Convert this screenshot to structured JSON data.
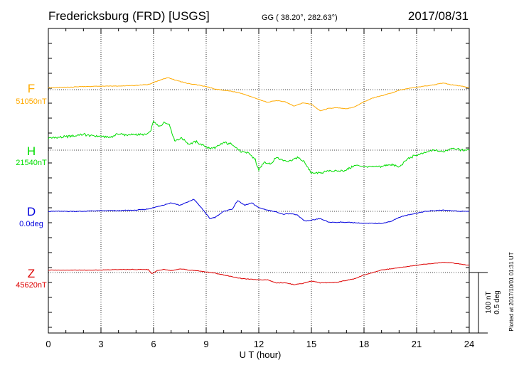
{
  "header": {
    "station": "Fredericksburg (FRD)  [USGS]",
    "coords": "GG ( 38.20°, 282.63°)",
    "date": "2017/08/31"
  },
  "chart_data": {
    "type": "line",
    "xlabel": "U T (hour)",
    "xlim": [
      0,
      24
    ],
    "xticks": [
      "0",
      "3",
      "6",
      "9",
      "12",
      "15",
      "18",
      "21",
      "24"
    ],
    "grid": true,
    "scale_bar": {
      "label1": "100 nT",
      "label2": "0.5 deg"
    },
    "footer_note": "Plotted at 2017/10/01 01:31  UT",
    "series": [
      {
        "name": "F",
        "baseline_label": "51050nT",
        "color": "#ffaa00",
        "unit": "nT relative to baseline",
        "x": [
          0,
          1,
          2,
          3,
          4,
          5,
          5.8,
          6.2,
          6.8,
          7.2,
          7.6,
          8,
          8.5,
          9,
          9.5,
          10,
          10.5,
          11,
          11.5,
          12,
          12.5,
          13,
          13.5,
          14,
          14.5,
          15,
          15.5,
          16,
          16.5,
          17,
          17.5,
          18,
          18.5,
          19,
          19.5,
          20,
          20.5,
          21,
          21.5,
          22,
          22.5,
          23,
          23.5,
          24
        ],
        "y": [
          3,
          4,
          5,
          6,
          6,
          7,
          9,
          14,
          20,
          16,
          13,
          10,
          8,
          5,
          1,
          -1,
          -3,
          -6,
          -11,
          -16,
          -21,
          -18,
          -20,
          -27,
          -22,
          -24,
          -35,
          -31,
          -30,
          -32,
          -28,
          -20,
          -14,
          -10,
          -6,
          -1,
          2,
          4,
          6,
          8,
          11,
          8,
          6,
          3
        ]
      },
      {
        "name": "H",
        "baseline_label": "21540nT",
        "color": "#00dd00",
        "unit": "nT relative to baseline",
        "x": [
          0,
          0.5,
          1,
          1.5,
          2,
          2.5,
          3,
          3.5,
          4,
          4.5,
          5,
          5.5,
          5.8,
          6,
          6.3,
          6.6,
          6.9,
          7.2,
          7.6,
          8,
          8.4,
          8.8,
          9.2,
          9.6,
          10,
          10.5,
          11,
          11.4,
          11.8,
          12,
          12.3,
          12.7,
          13,
          13.4,
          13.8,
          14.2,
          14.6,
          15,
          15.5,
          16,
          16.5,
          17,
          17.5,
          18,
          18.5,
          19,
          19.5,
          20,
          20.5,
          21,
          21.5,
          22,
          22.5,
          23,
          23.5,
          24
        ],
        "y": [
          20,
          21,
          22,
          24,
          26,
          24,
          23,
          21,
          27,
          25,
          26,
          25,
          30,
          48,
          38,
          46,
          43,
          16,
          20,
          10,
          14,
          8,
          3,
          5,
          12,
          10,
          -4,
          -4,
          -16,
          -34,
          -20,
          -22,
          -12,
          -17,
          -18,
          -12,
          -20,
          -38,
          -38,
          -34,
          -35,
          -33,
          -25,
          -27,
          -28,
          -27,
          -23,
          -28,
          -14,
          -8,
          -4,
          0,
          -3,
          4,
          0,
          0
        ]
      },
      {
        "name": "D",
        "baseline_label": "0.0deg",
        "color": "#0000dd",
        "unit": "nT relative to baseline",
        "x": [
          0,
          1,
          2,
          3,
          4,
          5,
          5.5,
          6,
          6.5,
          7,
          7.5,
          8,
          8.3,
          8.6,
          9,
          9.2,
          9.5,
          10,
          10.5,
          10.8,
          11.2,
          11.6,
          12,
          12.5,
          13,
          13.4,
          13.8,
          14.2,
          14.6,
          15,
          15.5,
          16,
          16.5,
          17,
          17.5,
          18,
          18.5,
          19,
          19.5,
          20,
          20.5,
          21,
          21.5,
          22,
          22.5,
          23,
          23.5,
          24
        ],
        "y": [
          0,
          0,
          0,
          1,
          1,
          2,
          3,
          6,
          10,
          14,
          10,
          16,
          20,
          10,
          -4,
          -12,
          -10,
          0,
          4,
          18,
          10,
          14,
          6,
          2,
          -1,
          -5,
          -4,
          -6,
          -16,
          -15,
          -12,
          -18,
          -18,
          -18,
          -19,
          -20,
          -20,
          -20,
          -17,
          -10,
          -6,
          -3,
          0,
          1,
          2,
          1,
          0,
          0
        ]
      },
      {
        "name": "Z",
        "baseline_label": "45620nT",
        "color": "#dd0000",
        "unit": "nT relative to baseline",
        "x": [
          0,
          1,
          2,
          3,
          4,
          5,
          5.7,
          5.9,
          6.2,
          6.6,
          7,
          7.6,
          8,
          8.5,
          9,
          9.5,
          10,
          10.5,
          11,
          11.5,
          12,
          12.5,
          13,
          13.5,
          14,
          14.5,
          15,
          15.5,
          16,
          16.5,
          17,
          17.5,
          18,
          18.5,
          19,
          19.5,
          20,
          20.5,
          21,
          21.5,
          22,
          22.5,
          23,
          23.5,
          24
        ],
        "y": [
          4,
          4,
          4,
          4,
          5,
          5,
          5,
          -2,
          3,
          5,
          3,
          6,
          4,
          3,
          1,
          -1,
          -4,
          -7,
          -10,
          -11,
          -12,
          -12,
          -17,
          -17,
          -20,
          -18,
          -14,
          -17,
          -17,
          -16,
          -13,
          -10,
          -4,
          0,
          4,
          6,
          8,
          10,
          12,
          14,
          15,
          17,
          16,
          14,
          12
        ]
      }
    ]
  }
}
